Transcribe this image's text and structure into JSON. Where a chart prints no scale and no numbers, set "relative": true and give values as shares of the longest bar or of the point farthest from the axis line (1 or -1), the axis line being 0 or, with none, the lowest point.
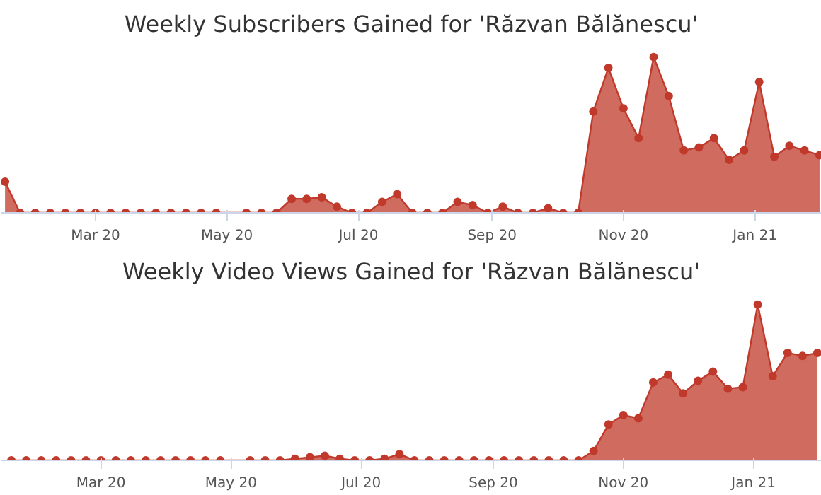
{
  "chart_data": [
    {
      "type": "area",
      "title": "Weekly Subscribers Gained for 'Răzvan Bălănescu'",
      "relative": true,
      "marker": "circle",
      "x": [
        "2020-01-19",
        "2020-01-26",
        "2020-02-02",
        "2020-02-09",
        "2020-02-16",
        "2020-02-23",
        "2020-03-01",
        "2020-03-08",
        "2020-03-15",
        "2020-03-22",
        "2020-03-29",
        "2020-04-05",
        "2020-04-12",
        "2020-04-19",
        "2020-04-26",
        "2020-05-10",
        "2020-05-17",
        "2020-05-24",
        "2020-05-31",
        "2020-06-07",
        "2020-06-14",
        "2020-06-21",
        "2020-06-28",
        "2020-07-05",
        "2020-07-12",
        "2020-07-19",
        "2020-07-26",
        "2020-08-02",
        "2020-08-09",
        "2020-08-16",
        "2020-08-23",
        "2020-08-30",
        "2020-09-06",
        "2020-09-13",
        "2020-09-20",
        "2020-09-27",
        "2020-10-04",
        "2020-10-11",
        "2020-10-18",
        "2020-10-25",
        "2020-11-01",
        "2020-11-08",
        "2020-11-15",
        "2020-11-22",
        "2020-11-29",
        "2020-12-06",
        "2020-12-13",
        "2020-12-20",
        "2020-12-27",
        "2021-01-03",
        "2021-01-10",
        "2021-01-17",
        "2021-01-24",
        "2021-01-31"
      ],
      "xlim": [
        "2020-01-17",
        "2021-02-01"
      ],
      "xticks": [
        {
          "value": "2020-03-01",
          "label": "Mar 20"
        },
        {
          "value": "2020-05-01",
          "label": "May 20"
        },
        {
          "value": "2020-07-01",
          "label": "Jul 20"
        },
        {
          "value": "2020-09-01",
          "label": "Sep 20"
        },
        {
          "value": "2020-11-01",
          "label": "Nov 20"
        },
        {
          "value": "2021-01-01",
          "label": "Jan 21"
        }
      ],
      "series": [
        {
          "color": "#c0392b",
          "values": [
            0.2,
            0,
            0,
            0,
            0,
            0,
            0,
            0,
            0,
            0,
            0,
            0,
            0,
            0,
            0,
            0,
            0,
            0,
            0.09,
            0.09,
            0.1,
            0.04,
            0,
            0,
            0.07,
            0.12,
            0,
            0,
            0,
            0.07,
            0.05,
            0,
            0.04,
            0,
            0,
            0.03,
            0,
            0,
            0.65,
            0.93,
            0.67,
            0.48,
            1.0,
            0.75,
            0.4,
            0.42,
            0.48,
            0.34,
            0.4,
            0.84,
            0.36,
            0.43,
            0.4,
            0.37
          ]
        }
      ]
    },
    {
      "type": "area",
      "title": "Weekly Video Views Gained for 'Răzvan Bălănescu'",
      "relative": true,
      "marker": "circle",
      "x": [
        "2020-01-19",
        "2020-01-26",
        "2020-02-02",
        "2020-02-09",
        "2020-02-16",
        "2020-02-23",
        "2020-03-01",
        "2020-03-08",
        "2020-03-15",
        "2020-03-22",
        "2020-03-29",
        "2020-04-05",
        "2020-04-12",
        "2020-04-19",
        "2020-04-26",
        "2020-05-10",
        "2020-05-17",
        "2020-05-24",
        "2020-05-31",
        "2020-06-07",
        "2020-06-14",
        "2020-06-21",
        "2020-06-28",
        "2020-07-05",
        "2020-07-12",
        "2020-07-19",
        "2020-07-26",
        "2020-08-02",
        "2020-08-09",
        "2020-08-16",
        "2020-08-23",
        "2020-08-30",
        "2020-09-06",
        "2020-09-13",
        "2020-09-20",
        "2020-09-27",
        "2020-10-04",
        "2020-10-11",
        "2020-10-18",
        "2020-10-25",
        "2020-11-01",
        "2020-11-08",
        "2020-11-15",
        "2020-11-22",
        "2020-11-29",
        "2020-12-06",
        "2020-12-13",
        "2020-12-20",
        "2020-12-27",
        "2021-01-03",
        "2021-01-10",
        "2021-01-17",
        "2021-01-24",
        "2021-01-31"
      ],
      "xlim": [
        "2020-01-14",
        "2021-02-02"
      ],
      "xticks": [
        {
          "value": "2020-03-01",
          "label": "Mar 20"
        },
        {
          "value": "2020-05-01",
          "label": "May 20"
        },
        {
          "value": "2020-07-01",
          "label": "Jul 20"
        },
        {
          "value": "2020-09-01",
          "label": "Sep 20"
        },
        {
          "value": "2020-11-01",
          "label": "Nov 20"
        },
        {
          "value": "2021-01-01",
          "label": "Jan 21"
        }
      ],
      "series": [
        {
          "color": "#c0392b",
          "values": [
            0,
            0,
            0,
            0,
            0,
            0,
            0,
            0,
            0,
            0,
            0,
            0,
            0,
            0,
            0,
            0,
            0,
            0,
            0.01,
            0.02,
            0.03,
            0.01,
            0,
            0,
            0.01,
            0.04,
            0,
            0,
            0,
            0,
            0,
            0,
            0,
            0,
            0,
            0,
            0,
            0,
            0.06,
            0.23,
            0.29,
            0.27,
            0.5,
            0.55,
            0.43,
            0.51,
            0.57,
            0.46,
            0.47,
            1.0,
            0.54,
            0.69,
            0.67,
            0.69
          ]
        }
      ]
    }
  ]
}
